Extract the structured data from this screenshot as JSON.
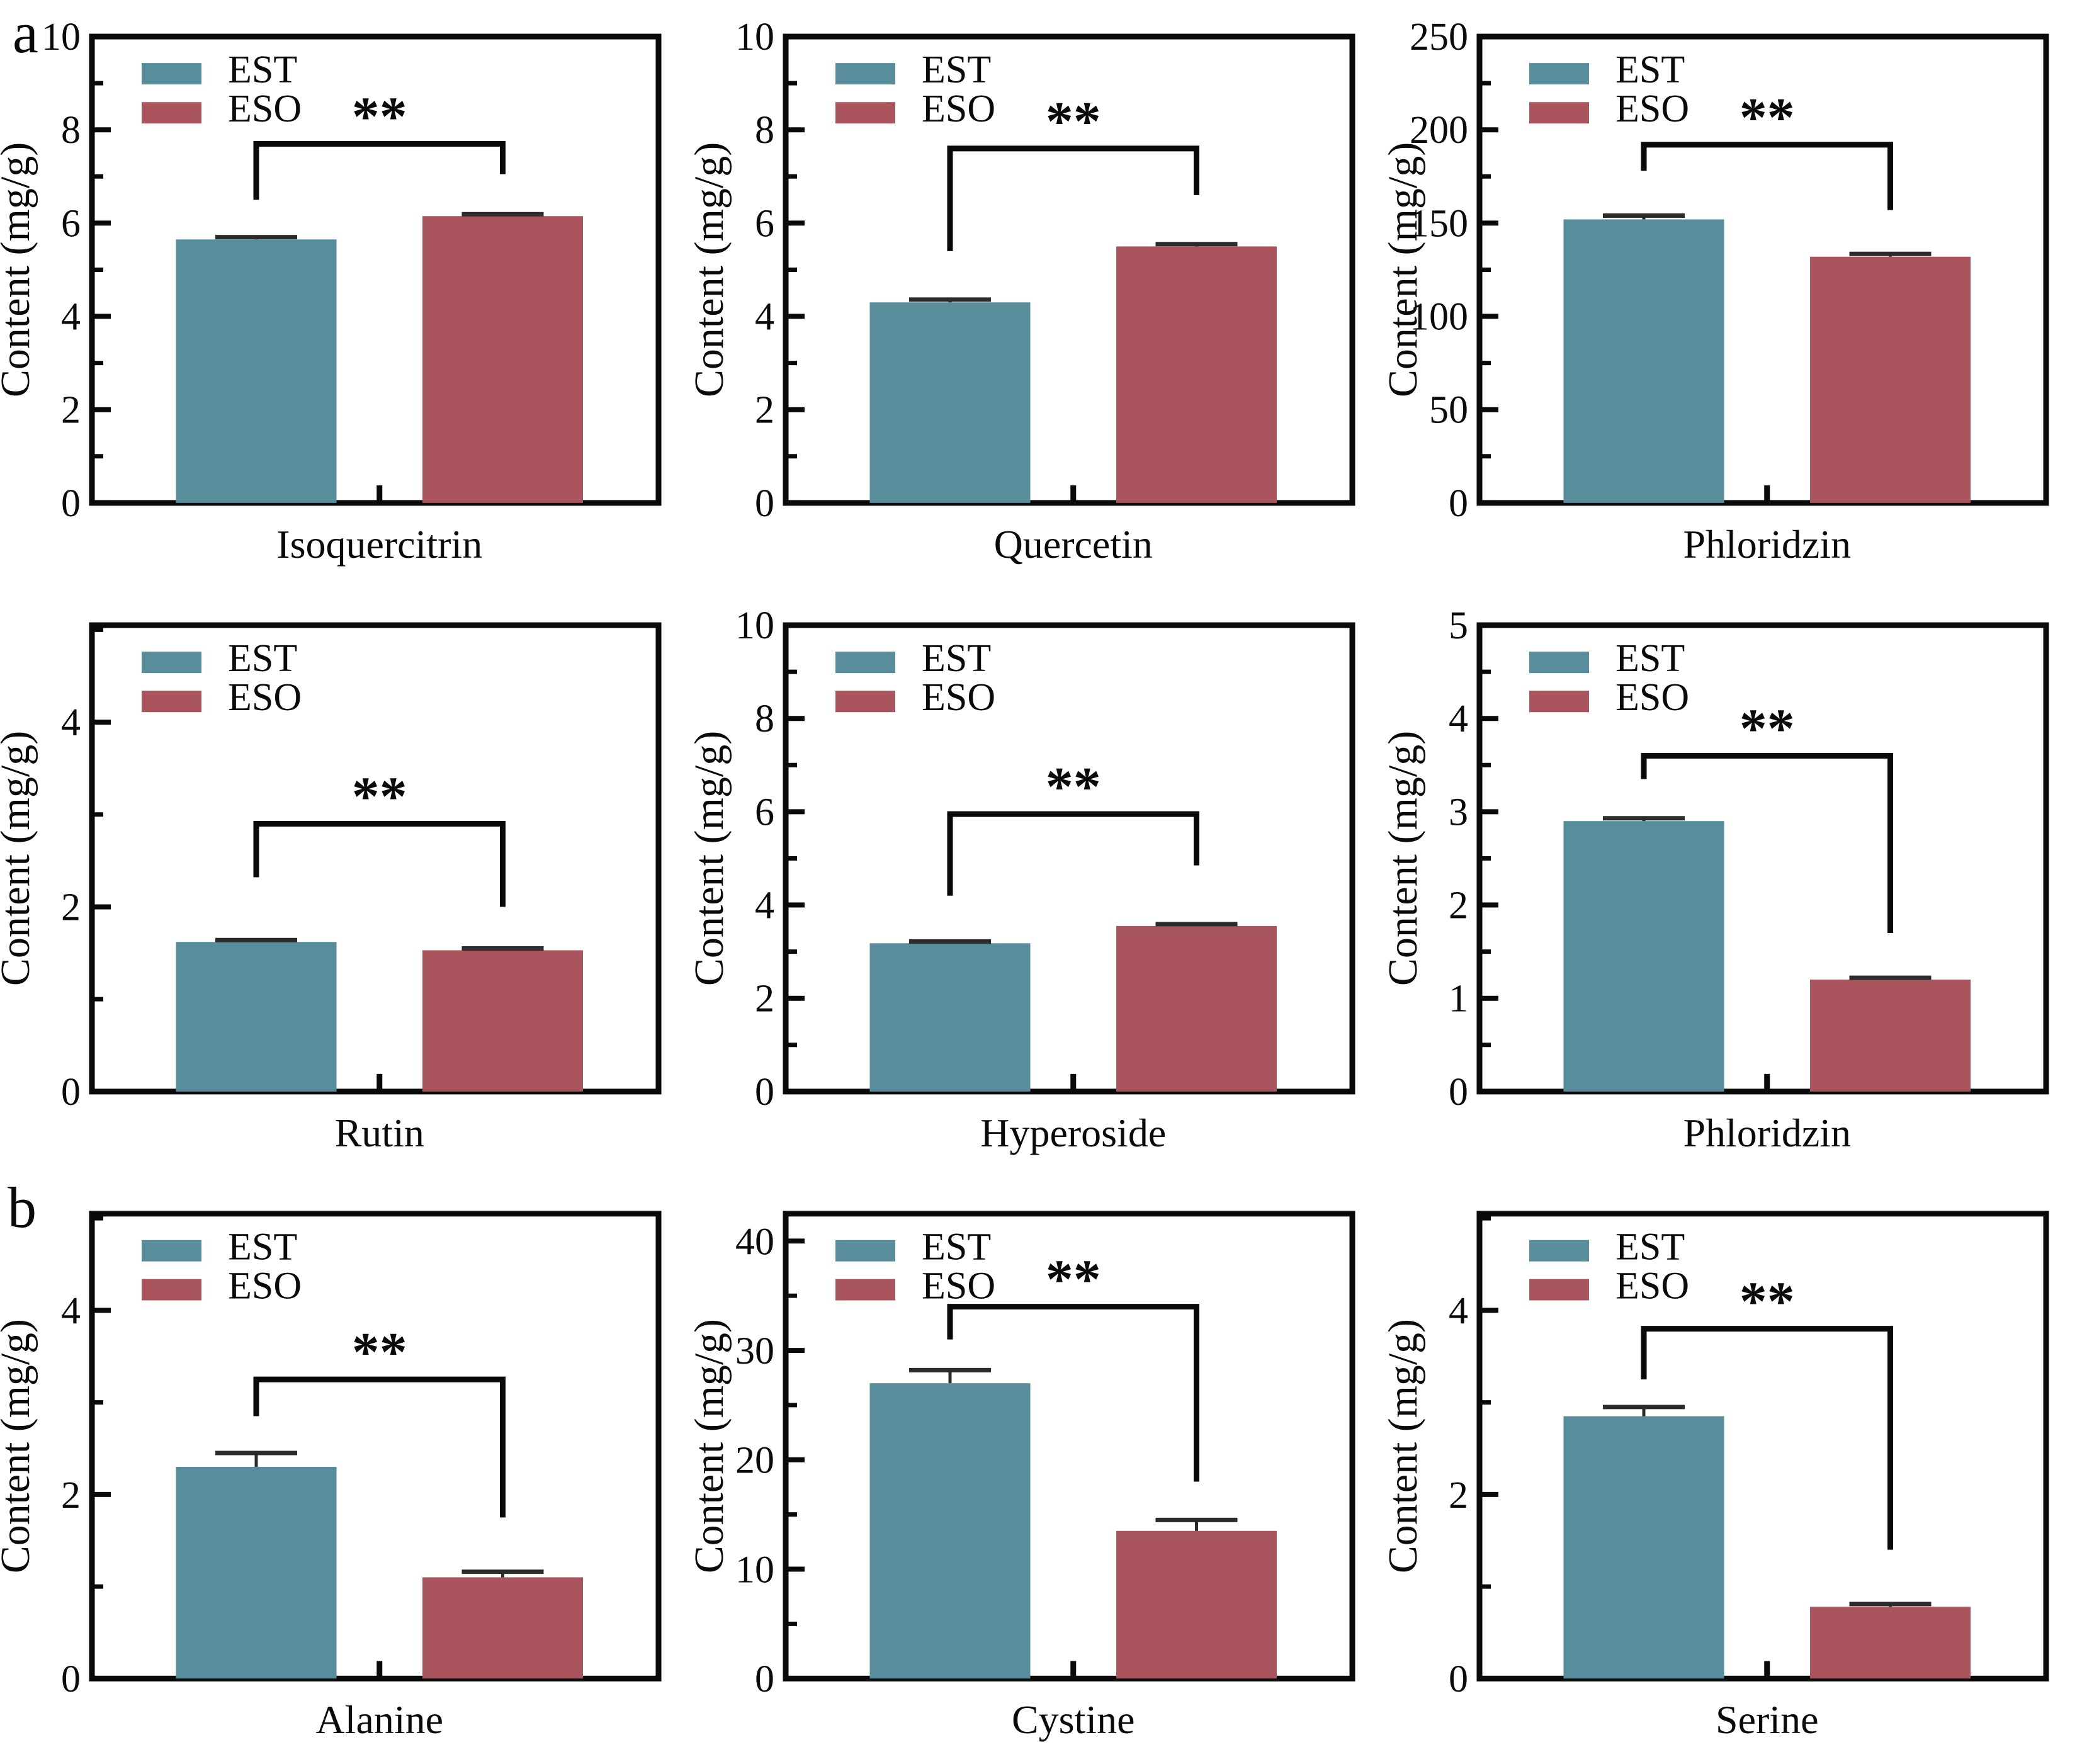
{
  "panel_labels": [
    {
      "text": "a"
    },
    {
      "text": "b"
    }
  ],
  "colors": {
    "est": "#588e9b",
    "eso": "#aa555e",
    "axis": "#0a0a0a",
    "error": "#2b2b2b",
    "background": "#ffffff"
  },
  "legend": {
    "entries": [
      "EST",
      "ESO"
    ],
    "position": "top-left-inside"
  },
  "significance_label": "**",
  "chart_data": [
    {
      "type": "bar",
      "panel": "a",
      "category": "Isoquercitrin",
      "ylabel": "Content (mg/g)",
      "ylim": [
        0,
        10
      ],
      "yticks_major": [
        0,
        2,
        4,
        6,
        8,
        10
      ],
      "yticks_minor": [
        1,
        3,
        5,
        7,
        9
      ],
      "grid": false,
      "series": [
        {
          "name": "EST",
          "value": 5.65,
          "error": 0.05
        },
        {
          "name": "ESO",
          "value": 6.15,
          "error": 0.04
        }
      ],
      "significance": {
        "label": "**",
        "bar_top": 7.7,
        "left_drop": 6.5,
        "right_drop": 7.05
      }
    },
    {
      "type": "bar",
      "panel": "a",
      "category": "Quercetin",
      "ylabel": "Content (mg/g)",
      "ylim": [
        0,
        10
      ],
      "yticks_major": [
        0,
        2,
        4,
        6,
        8,
        10
      ],
      "yticks_minor": [
        1,
        3,
        5,
        7,
        9
      ],
      "grid": false,
      "series": [
        {
          "name": "EST",
          "value": 4.3,
          "error": 0.06
        },
        {
          "name": "ESO",
          "value": 5.5,
          "error": 0.05
        }
      ],
      "significance": {
        "label": "**",
        "bar_top": 7.6,
        "left_drop": 5.4,
        "right_drop": 6.6
      }
    },
    {
      "type": "bar",
      "panel": "a",
      "category": "Phloridzin",
      "ylabel": "Content (mg/g)",
      "ylim": [
        0,
        250
      ],
      "yticks_major": [
        0,
        50,
        100,
        150,
        200,
        250
      ],
      "yticks_minor": [
        25,
        75,
        125,
        175,
        225
      ],
      "grid": false,
      "series": [
        {
          "name": "EST",
          "value": 152,
          "error": 2
        },
        {
          "name": "ESO",
          "value": 132,
          "error": 1.5
        }
      ],
      "significance": {
        "label": "**",
        "bar_top": 192,
        "left_drop": 178,
        "right_drop": 157
      }
    },
    {
      "type": "bar",
      "panel": "a",
      "category": "Rutin",
      "ylabel": "Content (mg/g)",
      "ylim": [
        0,
        5.05
      ],
      "yticks_major": [
        0,
        2,
        4
      ],
      "yticks_minor": [
        1,
        3,
        5
      ],
      "grid": false,
      "series": [
        {
          "name": "EST",
          "value": 1.62,
          "error": 0.02
        },
        {
          "name": "ESO",
          "value": 1.53,
          "error": 0.02
        }
      ],
      "significance": {
        "label": "**",
        "bar_top": 2.9,
        "left_drop": 2.32,
        "right_drop": 2.0
      }
    },
    {
      "type": "bar",
      "panel": "a",
      "category": "Hyperoside",
      "ylabel": "Content (mg/g)",
      "ylim": [
        0,
        10
      ],
      "yticks_major": [
        0,
        2,
        4,
        6,
        8,
        10
      ],
      "yticks_minor": [
        1,
        3,
        5,
        7,
        9
      ],
      "grid": false,
      "series": [
        {
          "name": "EST",
          "value": 3.18,
          "error": 0.04
        },
        {
          "name": "ESO",
          "value": 3.55,
          "error": 0.04
        }
      ],
      "significance": {
        "label": "**",
        "bar_top": 5.95,
        "left_drop": 4.2,
        "right_drop": 4.85
      }
    },
    {
      "type": "bar",
      "panel": "a",
      "category": "Phloridzin",
      "ylabel": "Content (mg/g)",
      "ylim": [
        0,
        5
      ],
      "yticks_major": [
        0,
        1,
        2,
        3,
        4,
        5
      ],
      "yticks_minor": [
        0.5,
        1.5,
        2.5,
        3.5,
        4.5
      ],
      "grid": false,
      "series": [
        {
          "name": "EST",
          "value": 2.9,
          "error": 0.03
        },
        {
          "name": "ESO",
          "value": 1.2,
          "error": 0.02
        }
      ],
      "significance": {
        "label": "**",
        "bar_top": 3.6,
        "left_drop": 3.35,
        "right_drop": 1.7
      }
    },
    {
      "type": "bar",
      "panel": "b",
      "category": "Alanine",
      "ylabel": "Content (mg/g)",
      "ylim": [
        0,
        5.05
      ],
      "yticks_major": [
        0,
        2,
        4
      ],
      "yticks_minor": [
        1,
        3,
        5
      ],
      "grid": false,
      "series": [
        {
          "name": "EST",
          "value": 2.3,
          "error": 0.15
        },
        {
          "name": "ESO",
          "value": 1.1,
          "error": 0.06
        }
      ],
      "significance": {
        "label": "**",
        "bar_top": 3.25,
        "left_drop": 2.85,
        "right_drop": 1.75
      }
    },
    {
      "type": "bar",
      "panel": "b",
      "category": "Cystine",
      "ylabel": "Content (mg/g)",
      "ylim": [
        0,
        42.5
      ],
      "yticks_major": [
        0,
        10,
        20,
        30,
        40
      ],
      "yticks_minor": [
        5,
        15,
        25,
        35
      ],
      "grid": false,
      "series": [
        {
          "name": "EST",
          "value": 27,
          "error": 1.2
        },
        {
          "name": "ESO",
          "value": 13.5,
          "error": 1.0
        }
      ],
      "significance": {
        "label": "**",
        "bar_top": 34,
        "left_drop": 31,
        "right_drop": 18
      }
    },
    {
      "type": "bar",
      "panel": "b",
      "category": "Serine",
      "ylabel": "Content (mg/g)",
      "ylim": [
        0,
        5.05
      ],
      "yticks_major": [
        0,
        2,
        4
      ],
      "yticks_minor": [
        1,
        3,
        5
      ],
      "grid": false,
      "series": [
        {
          "name": "EST",
          "value": 2.85,
          "error": 0.1
        },
        {
          "name": "ESO",
          "value": 0.78,
          "error": 0.03
        }
      ],
      "significance": {
        "label": "**",
        "bar_top": 3.8,
        "left_drop": 3.25,
        "right_drop": 1.4
      }
    }
  ]
}
